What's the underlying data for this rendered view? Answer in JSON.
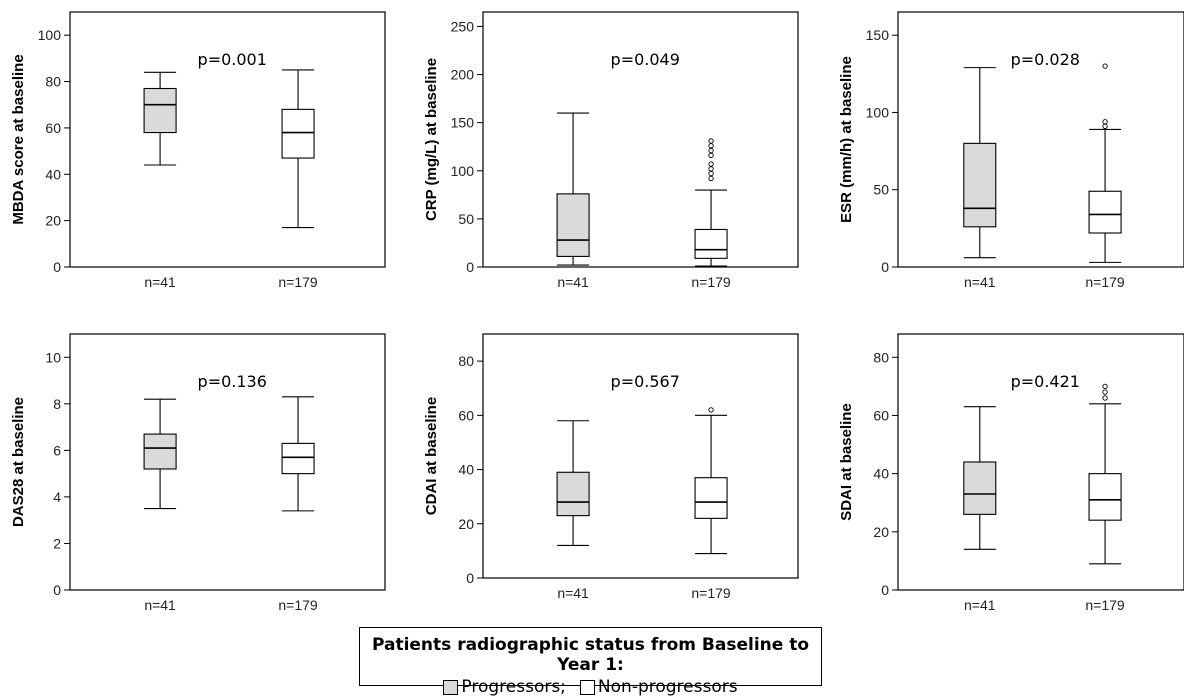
{
  "chart_data": [
    {
      "type": "box",
      "ylabel": "MBDA score at baseline",
      "annotation": "p=0.001",
      "ylim": [
        0,
        110
      ],
      "yticks": [
        0,
        20,
        40,
        60,
        80,
        100
      ],
      "categories": [
        "n=41",
        "n=179"
      ],
      "boxes": [
        {
          "group": "Progressors",
          "whisker_low": 44,
          "q1": 58,
          "median": 70,
          "q3": 77,
          "whisker_high": 84,
          "outliers": []
        },
        {
          "group": "Non-progressors",
          "whisker_low": 17,
          "q1": 47,
          "median": 58,
          "q3": 68,
          "whisker_high": 85,
          "outliers": []
        }
      ]
    },
    {
      "type": "box",
      "ylabel": "CRP (mg/L) at baseline",
      "annotation": "p=0.049",
      "ylim": [
        0,
        265
      ],
      "yticks": [
        0,
        50,
        100,
        150,
        200,
        250
      ],
      "categories": [
        "n=41",
        "n=179"
      ],
      "boxes": [
        {
          "group": "Progressors",
          "whisker_low": 2,
          "q1": 11,
          "median": 28,
          "q3": 76,
          "whisker_high": 160,
          "outliers": []
        },
        {
          "group": "Non-progressors",
          "whisker_low": 1,
          "q1": 9,
          "median": 18,
          "q3": 39,
          "whisker_high": 80,
          "outliers": [
            92,
            97,
            102,
            107,
            116,
            121,
            126,
            131
          ]
        }
      ]
    },
    {
      "type": "box",
      "ylabel": "ESR (mm/h) at baseline",
      "annotation": "p=0.028",
      "ylim": [
        0,
        165
      ],
      "yticks": [
        0,
        50,
        100,
        150
      ],
      "categories": [
        "n=41",
        "n=179"
      ],
      "boxes": [
        {
          "group": "Progressors",
          "whisker_low": 6,
          "q1": 26,
          "median": 38,
          "q3": 80,
          "whisker_high": 129,
          "outliers": []
        },
        {
          "group": "Non-progressors",
          "whisker_low": 3,
          "q1": 22,
          "median": 34,
          "q3": 49,
          "whisker_high": 89,
          "outliers": [
            91,
            94,
            130
          ]
        }
      ]
    },
    {
      "type": "box",
      "ylabel": "DAS28 at baseline",
      "annotation": "p=0.136",
      "ylim": [
        0,
        11
      ],
      "yticks": [
        0,
        2,
        4,
        6,
        8,
        10
      ],
      "categories": [
        "n=41",
        "n=179"
      ],
      "boxes": [
        {
          "group": "Progressors",
          "whisker_low": 3.5,
          "q1": 5.2,
          "median": 6.1,
          "q3": 6.7,
          "whisker_high": 8.2,
          "outliers": []
        },
        {
          "group": "Non-progressors",
          "whisker_low": 3.4,
          "q1": 5.0,
          "median": 5.7,
          "q3": 6.3,
          "whisker_high": 8.3,
          "outliers": []
        }
      ]
    },
    {
      "type": "box",
      "ylabel": "CDAI at baseline",
      "annotation": "p=0.567",
      "ylim": [
        0,
        90
      ],
      "yticks": [
        0,
        20,
        40,
        60,
        80
      ],
      "categories": [
        "n=41",
        "n=179"
      ],
      "boxes": [
        {
          "group": "Progressors",
          "whisker_low": 12,
          "q1": 23,
          "median": 28,
          "q3": 39,
          "whisker_high": 58,
          "outliers": []
        },
        {
          "group": "Non-progressors",
          "whisker_low": 9,
          "q1": 22,
          "median": 28,
          "q3": 37,
          "whisker_high": 60,
          "outliers": [
            62
          ]
        }
      ]
    },
    {
      "type": "box",
      "ylabel": "SDAI at baseline",
      "annotation": "p=0.421",
      "ylim": [
        0,
        88
      ],
      "yticks": [
        0,
        20,
        40,
        60,
        80
      ],
      "categories": [
        "n=41",
        "n=179"
      ],
      "boxes": [
        {
          "group": "Progressors",
          "whisker_low": 14,
          "q1": 26,
          "median": 33,
          "q3": 44,
          "whisker_high": 63,
          "outliers": []
        },
        {
          "group": "Non-progressors",
          "whisker_low": 9,
          "q1": 24,
          "median": 31,
          "q3": 40,
          "whisker_high": 64,
          "outliers": [
            66,
            68,
            70
          ]
        }
      ]
    }
  ],
  "colors": {
    "progressors_fill": "#dadada",
    "non_progressors_fill": "#ffffff",
    "stroke": "#000000"
  },
  "legend": {
    "title": "Patients radiographic status from Baseline to Year 1:",
    "progressors_label": "Progressors;",
    "non_progressors_label": "Non-progressors"
  }
}
